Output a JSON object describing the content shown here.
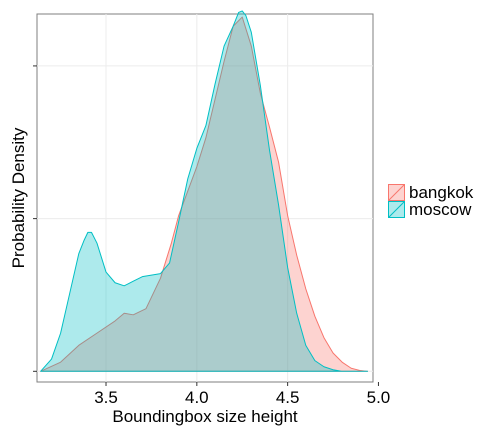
{
  "chart_data": {
    "type": "area",
    "title": "",
    "xlabel": "Boundingbox size height",
    "ylabel": "Probability Density",
    "xlim": [
      3.12,
      4.97
    ],
    "ylim": [
      -0.07,
      2.34
    ],
    "x_ticks": [
      3.5,
      4.0,
      4.5,
      5.0
    ],
    "x_tick_labels": [
      "3.5",
      "4.0",
      "4.5",
      "5.0"
    ],
    "y_ticks": [
      0,
      1,
      2,
      3
    ],
    "y_tick_labels": [
      "",
      "",
      "",
      ""
    ],
    "grid": true,
    "legend_position": "right",
    "series": [
      {
        "name": "bangkok",
        "fill": "#f8766d",
        "stroke": "#f8766d",
        "x": [
          3.14,
          3.25,
          3.35,
          3.45,
          3.55,
          3.6,
          3.65,
          3.72,
          3.8,
          3.86,
          3.9,
          4.0,
          4.05,
          4.1,
          4.15,
          4.2,
          4.25,
          4.3,
          4.35,
          4.4,
          4.45,
          4.5,
          4.55,
          4.6,
          4.65,
          4.7,
          4.75,
          4.8,
          4.85,
          4.9,
          4.94
        ],
        "y": [
          0.0,
          0.06,
          0.17,
          0.25,
          0.33,
          0.38,
          0.37,
          0.41,
          0.61,
          0.84,
          1.02,
          1.34,
          1.53,
          1.78,
          2.03,
          2.26,
          2.32,
          2.13,
          1.82,
          1.6,
          1.37,
          1.02,
          0.76,
          0.54,
          0.36,
          0.22,
          0.12,
          0.06,
          0.02,
          0.005,
          0.0
        ]
      },
      {
        "name": "moscow",
        "fill": "#00bfc4",
        "stroke": "#00bfc4",
        "x": [
          3.14,
          3.2,
          3.25,
          3.3,
          3.35,
          3.38,
          3.4,
          3.42,
          3.45,
          3.5,
          3.55,
          3.6,
          3.65,
          3.7,
          3.75,
          3.8,
          3.85,
          3.9,
          3.95,
          4.0,
          4.05,
          4.1,
          4.15,
          4.2,
          4.23,
          4.25,
          4.27,
          4.3,
          4.35,
          4.4,
          4.45,
          4.5,
          4.55,
          4.6,
          4.65,
          4.7,
          4.75,
          4.8,
          4.9,
          4.94
        ],
        "y": [
          0.0,
          0.08,
          0.25,
          0.51,
          0.77,
          0.86,
          0.91,
          0.91,
          0.84,
          0.65,
          0.58,
          0.56,
          0.59,
          0.62,
          0.63,
          0.64,
          0.71,
          0.98,
          1.26,
          1.46,
          1.61,
          1.88,
          2.13,
          2.26,
          2.35,
          2.36,
          2.33,
          2.22,
          1.87,
          1.45,
          1.09,
          0.68,
          0.38,
          0.17,
          0.07,
          0.03,
          0.01,
          0.0,
          0.0,
          0.0
        ]
      }
    ]
  }
}
